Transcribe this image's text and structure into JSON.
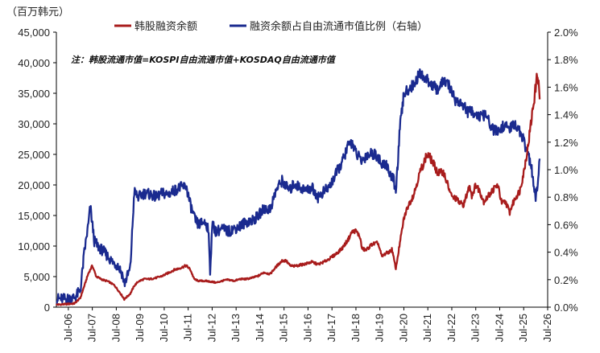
{
  "chart_data": {
    "type": "line",
    "unit_label": "（百万韩元）",
    "note": "注：韩股流通市值=KOSPI自由流通市值+KOSDAQ自由流通市值",
    "x_ticks": [
      "Jul-06",
      "Jul-07",
      "Jul-08",
      "Jul-09",
      "Jul-10",
      "Jul-11",
      "Jul-12",
      "Jul-13",
      "Jul-14",
      "Jul-15",
      "Jul-16",
      "Jul-17",
      "Jul-18",
      "Jul-19",
      "Jul-20",
      "Jul-21",
      "Jul-22",
      "Jul-23",
      "Jul-24",
      "Jul-25",
      "Jul-26"
    ],
    "y_left": {
      "range": [
        0,
        45000
      ],
      "ticks": [
        0,
        5000,
        10000,
        15000,
        20000,
        25000,
        30000,
        35000,
        40000,
        45000
      ],
      "tick_labels": [
        "0",
        "5,000",
        "10,000",
        "15,000",
        "20,000",
        "25,000",
        "30,000",
        "35,000",
        "40,000",
        "45,000"
      ]
    },
    "y_right": {
      "range": [
        0,
        2.0
      ],
      "ticks": [
        0,
        0.2,
        0.4,
        0.6,
        0.8,
        1.0,
        1.2,
        1.4,
        1.6,
        1.8,
        2.0
      ],
      "tick_labels": [
        "0.0%",
        "0.2%",
        "0.4%",
        "0.6%",
        "0.8%",
        "1.0%",
        "1.2%",
        "1.4%",
        "1.6%",
        "1.8%",
        "2.0%"
      ]
    },
    "series": [
      {
        "name": "韩股融资余额",
        "axis": "left",
        "color": "#a81c1c",
        "points": [
          [
            "2006-01",
            400
          ],
          [
            "2006-06",
            500
          ],
          [
            "2006-10",
            600
          ],
          [
            "2007-01",
            1500
          ],
          [
            "2007-03",
            3500
          ],
          [
            "2007-05",
            5500
          ],
          [
            "2007-07",
            6800
          ],
          [
            "2007-09",
            5000
          ],
          [
            "2007-12",
            4500
          ],
          [
            "2008-03",
            4200
          ],
          [
            "2008-06",
            3600
          ],
          [
            "2008-09",
            2300
          ],
          [
            "2008-11",
            1300
          ],
          [
            "2009-02",
            2200
          ],
          [
            "2009-04",
            3500
          ],
          [
            "2009-06",
            4200
          ],
          [
            "2009-09",
            4600
          ],
          [
            "2009-12",
            4600
          ],
          [
            "2010-03",
            4800
          ],
          [
            "2010-06",
            5100
          ],
          [
            "2010-09",
            5600
          ],
          [
            "2010-12",
            6100
          ],
          [
            "2011-03",
            6400
          ],
          [
            "2011-06",
            6800
          ],
          [
            "2011-08",
            6200
          ],
          [
            "2011-10",
            4600
          ],
          [
            "2011-12",
            4300
          ],
          [
            "2012-03",
            4300
          ],
          [
            "2012-06",
            4200
          ],
          [
            "2012-09",
            4000
          ],
          [
            "2012-12",
            4300
          ],
          [
            "2013-03",
            4500
          ],
          [
            "2013-06",
            4300
          ],
          [
            "2013-09",
            4600
          ],
          [
            "2013-12",
            4600
          ],
          [
            "2014-03",
            4800
          ],
          [
            "2014-06",
            5100
          ],
          [
            "2014-09",
            5700
          ],
          [
            "2014-12",
            5400
          ],
          [
            "2015-03",
            6600
          ],
          [
            "2015-06",
            7600
          ],
          [
            "2015-08",
            7600
          ],
          [
            "2015-10",
            6800
          ],
          [
            "2015-12",
            6700
          ],
          [
            "2016-03",
            6900
          ],
          [
            "2016-06",
            7100
          ],
          [
            "2016-09",
            7400
          ],
          [
            "2016-12",
            7000
          ],
          [
            "2017-03",
            7400
          ],
          [
            "2017-06",
            8000
          ],
          [
            "2017-09",
            8700
          ],
          [
            "2017-12",
            9600
          ],
          [
            "2018-03",
            11000
          ],
          [
            "2018-05",
            12300
          ],
          [
            "2018-07",
            12500
          ],
          [
            "2018-09",
            11500
          ],
          [
            "2018-10",
            9600
          ],
          [
            "2018-12",
            9300
          ],
          [
            "2019-03",
            10300
          ],
          [
            "2019-06",
            10500
          ],
          [
            "2019-08",
            8300
          ],
          [
            "2019-10",
            8800
          ],
          [
            "2019-12",
            9100
          ],
          [
            "2020-01",
            9500
          ],
          [
            "2020-03",
            6300
          ],
          [
            "2020-05",
            10500
          ],
          [
            "2020-07",
            14500
          ],
          [
            "2020-09",
            16500
          ],
          [
            "2020-12",
            18500
          ],
          [
            "2021-03",
            22000
          ],
          [
            "2021-06",
            24500
          ],
          [
            "2021-07",
            25000
          ],
          [
            "2021-09",
            24000
          ],
          [
            "2021-12",
            22000
          ],
          [
            "2022-03",
            22000
          ],
          [
            "2022-06",
            19000
          ],
          [
            "2022-07",
            18000
          ],
          [
            "2022-09",
            17800
          ],
          [
            "2022-11",
            17000
          ],
          [
            "2023-01",
            16800
          ],
          [
            "2023-04",
            20000
          ],
          [
            "2023-05",
            18200
          ],
          [
            "2023-07",
            20000
          ],
          [
            "2023-09",
            19000
          ],
          [
            "2023-11",
            17300
          ],
          [
            "2024-01",
            18000
          ],
          [
            "2024-03",
            19000
          ],
          [
            "2024-06",
            20000
          ],
          [
            "2024-08",
            17000
          ],
          [
            "2024-10",
            17200
          ],
          [
            "2024-12",
            15500
          ],
          [
            "2025-01",
            16500
          ],
          [
            "2025-03",
            18000
          ],
          [
            "2025-05",
            19000
          ],
          [
            "2025-07",
            22000
          ],
          [
            "2025-09",
            26000
          ],
          [
            "2025-11",
            31000
          ],
          [
            "2026-01",
            36000
          ],
          [
            "2026-02",
            38500
          ],
          [
            "2026-03",
            34000
          ]
        ]
      },
      {
        "name": "融资余额占自由流通市值比例（右轴）",
        "axis": "right",
        "color": "#1a2a8f",
        "points": [
          [
            "2006-01",
            0.06
          ],
          [
            "2006-06",
            0.06
          ],
          [
            "2006-10",
            0.07
          ],
          [
            "2007-01",
            0.12
          ],
          [
            "2007-03",
            0.4
          ],
          [
            "2007-05",
            0.6
          ],
          [
            "2007-06",
            0.73
          ],
          [
            "2007-08",
            0.48
          ],
          [
            "2007-10",
            0.44
          ],
          [
            "2008-01",
            0.4
          ],
          [
            "2008-05",
            0.33
          ],
          [
            "2008-08",
            0.3
          ],
          [
            "2008-10",
            0.24
          ],
          [
            "2008-11",
            0.17
          ],
          [
            "2009-02",
            0.28
          ],
          [
            "2009-04",
            0.84
          ],
          [
            "2009-06",
            0.8
          ],
          [
            "2009-09",
            0.83
          ],
          [
            "2009-12",
            0.82
          ],
          [
            "2010-03",
            0.8
          ],
          [
            "2010-06",
            0.83
          ],
          [
            "2010-09",
            0.82
          ],
          [
            "2010-12",
            0.85
          ],
          [
            "2011-03",
            0.87
          ],
          [
            "2011-06",
            0.88
          ],
          [
            "2011-08",
            0.75
          ],
          [
            "2011-10",
            0.65
          ],
          [
            "2011-12",
            0.6
          ],
          [
            "2012-03",
            0.62
          ],
          [
            "2012-05",
            0.58
          ],
          [
            "2012-06",
            0.26
          ],
          [
            "2012-07",
            0.6
          ],
          [
            "2012-09",
            0.55
          ],
          [
            "2012-12",
            0.57
          ],
          [
            "2013-03",
            0.55
          ],
          [
            "2013-06",
            0.57
          ],
          [
            "2013-09",
            0.59
          ],
          [
            "2013-12",
            0.62
          ],
          [
            "2014-03",
            0.63
          ],
          [
            "2014-06",
            0.66
          ],
          [
            "2014-09",
            0.72
          ],
          [
            "2014-12",
            0.71
          ],
          [
            "2015-03",
            0.85
          ],
          [
            "2015-06",
            0.92
          ],
          [
            "2015-08",
            0.88
          ],
          [
            "2015-10",
            0.85
          ],
          [
            "2015-12",
            0.9
          ],
          [
            "2016-03",
            0.87
          ],
          [
            "2016-06",
            0.85
          ],
          [
            "2016-09",
            0.87
          ],
          [
            "2016-12",
            0.8
          ],
          [
            "2017-03",
            0.84
          ],
          [
            "2017-06",
            0.88
          ],
          [
            "2017-09",
            0.97
          ],
          [
            "2017-12",
            1.05
          ],
          [
            "2018-03",
            1.17
          ],
          [
            "2018-05",
            1.2
          ],
          [
            "2018-07",
            1.12
          ],
          [
            "2018-10",
            1.06
          ],
          [
            "2018-12",
            1.1
          ],
          [
            "2019-03",
            1.12
          ],
          [
            "2019-06",
            1.1
          ],
          [
            "2019-08",
            1.02
          ],
          [
            "2019-10",
            1.05
          ],
          [
            "2019-12",
            0.97
          ],
          [
            "2020-02",
            0.92
          ],
          [
            "2020-03",
            0.83
          ],
          [
            "2020-05",
            1.3
          ],
          [
            "2020-07",
            1.55
          ],
          [
            "2020-09",
            1.58
          ],
          [
            "2020-12",
            1.62
          ],
          [
            "2021-03",
            1.7
          ],
          [
            "2021-06",
            1.66
          ],
          [
            "2021-09",
            1.62
          ],
          [
            "2021-12",
            1.58
          ],
          [
            "2022-03",
            1.65
          ],
          [
            "2022-06",
            1.6
          ],
          [
            "2022-09",
            1.5
          ],
          [
            "2022-12",
            1.48
          ],
          [
            "2023-03",
            1.42
          ],
          [
            "2023-06",
            1.42
          ],
          [
            "2023-09",
            1.38
          ],
          [
            "2023-12",
            1.4
          ],
          [
            "2024-03",
            1.3
          ],
          [
            "2024-06",
            1.27
          ],
          [
            "2024-09",
            1.32
          ],
          [
            "2024-12",
            1.3
          ],
          [
            "2025-03",
            1.33
          ],
          [
            "2025-06",
            1.25
          ],
          [
            "2025-09",
            1.12
          ],
          [
            "2025-11",
            1.0
          ],
          [
            "2026-01",
            0.77
          ],
          [
            "2026-02",
            0.9
          ],
          [
            "2026-03",
            1.08
          ]
        ]
      }
    ]
  }
}
